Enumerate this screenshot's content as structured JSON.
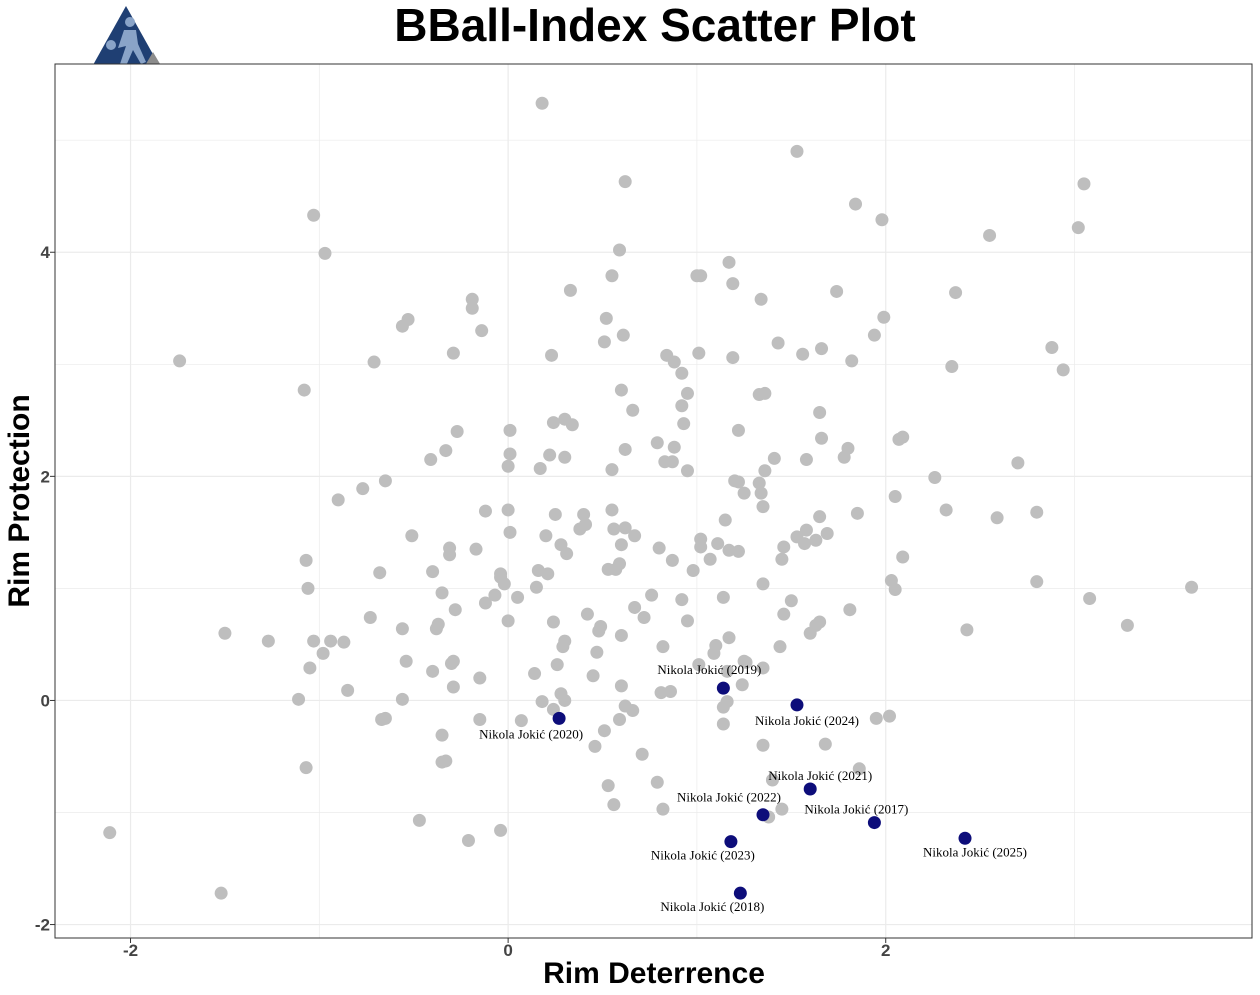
{
  "chart_data": {
    "type": "scatter",
    "title": "BBall-Index Scatter Plot",
    "xlabel": "Rim Deterrence",
    "ylabel": "Rim Protection",
    "xlim": [
      -2.4,
      3.94
    ],
    "ylim": [
      -2.12,
      5.68
    ],
    "x_ticks": [
      -2,
      0,
      2
    ],
    "y_ticks": [
      -2,
      0,
      2,
      4
    ],
    "x_tick_labels": [
      "-2",
      "0",
      "2"
    ],
    "y_tick_labels": [
      "-2",
      "0",
      "2",
      "4"
    ],
    "grid": true,
    "colors": {
      "background": "#ffffff",
      "others": "#bebebe",
      "highlight": "#0d0d7a",
      "grid": "#ebebeb",
      "logo_primary": "#1f3f73",
      "logo_secondary": "#8c8c8c"
    },
    "logo_icon": "basketball-player-triangle-logo",
    "series": [
      {
        "values": [
          [
            0.18,
            5.33
          ],
          [
            1.53,
            4.9
          ],
          [
            0.62,
            4.63
          ],
          [
            3.05,
            4.61
          ],
          [
            1.84,
            4.43
          ],
          [
            -1.03,
            4.33
          ],
          [
            1.98,
            4.29
          ],
          [
            3.02,
            4.22
          ],
          [
            2.55,
            4.15
          ],
          [
            0.59,
            4.02
          ],
          [
            -0.97,
            3.99
          ],
          [
            1.17,
            3.91
          ],
          [
            1.0,
            3.79
          ],
          [
            0.55,
            3.79
          ],
          [
            1.02,
            3.79
          ],
          [
            1.19,
            3.72
          ],
          [
            0.33,
            3.66
          ],
          [
            1.74,
            3.65
          ],
          [
            2.37,
            3.64
          ],
          [
            1.34,
            3.58
          ],
          [
            -0.19,
            3.58
          ],
          [
            -0.19,
            3.5
          ],
          [
            0.52,
            3.41
          ],
          [
            1.99,
            3.42
          ],
          [
            -0.53,
            3.4
          ],
          [
            -0.56,
            3.34
          ],
          [
            -0.14,
            3.3
          ],
          [
            0.61,
            3.26
          ],
          [
            1.94,
            3.26
          ],
          [
            1.43,
            3.19
          ],
          [
            0.51,
            3.2
          ],
          [
            2.88,
            3.15
          ],
          [
            1.66,
            3.14
          ],
          [
            -0.29,
            3.1
          ],
          [
            1.01,
            3.1
          ],
          [
            0.23,
            3.08
          ],
          [
            0.84,
            3.08
          ],
          [
            1.56,
            3.09
          ],
          [
            1.19,
            3.06
          ],
          [
            1.82,
            3.03
          ],
          [
            0.88,
            3.02
          ],
          [
            -1.74,
            3.03
          ],
          [
            -0.71,
            3.02
          ],
          [
            2.35,
            2.98
          ],
          [
            2.94,
            2.95
          ],
          [
            0.92,
            2.92
          ],
          [
            0.6,
            2.77
          ],
          [
            -1.08,
            2.77
          ],
          [
            0.95,
            2.74
          ],
          [
            1.33,
            2.73
          ],
          [
            1.36,
            2.74
          ],
          [
            0.92,
            2.63
          ],
          [
            0.66,
            2.59
          ],
          [
            1.65,
            2.57
          ],
          [
            0.3,
            2.51
          ],
          [
            0.24,
            2.48
          ],
          [
            0.34,
            2.46
          ],
          [
            0.93,
            2.47
          ],
          [
            1.22,
            2.41
          ],
          [
            0.01,
            2.41
          ],
          [
            -0.27,
            2.4
          ],
          [
            1.66,
            2.34
          ],
          [
            2.07,
            2.33
          ],
          [
            2.09,
            2.35
          ],
          [
            0.79,
            2.3
          ],
          [
            0.88,
            2.26
          ],
          [
            -0.33,
            2.23
          ],
          [
            1.8,
            2.25
          ],
          [
            0.62,
            2.24
          ],
          [
            0.22,
            2.19
          ],
          [
            0.01,
            2.2
          ],
          [
            0.3,
            2.17
          ],
          [
            1.41,
            2.16
          ],
          [
            1.58,
            2.15
          ],
          [
            1.78,
            2.17
          ],
          [
            -0.41,
            2.15
          ],
          [
            0.83,
            2.13
          ],
          [
            0.87,
            2.13
          ],
          [
            2.7,
            2.12
          ],
          [
            0.0,
            2.09
          ],
          [
            0.17,
            2.07
          ],
          [
            0.55,
            2.06
          ],
          [
            1.36,
            2.05
          ],
          [
            0.95,
            2.05
          ],
          [
            2.26,
            1.99
          ],
          [
            1.2,
            1.96
          ],
          [
            -0.65,
            1.96
          ],
          [
            1.22,
            1.95
          ],
          [
            1.33,
            1.94
          ],
          [
            -0.77,
            1.89
          ],
          [
            1.25,
            1.85
          ],
          [
            1.34,
            1.85
          ],
          [
            2.05,
            1.82
          ],
          [
            -0.9,
            1.79
          ],
          [
            1.35,
            1.73
          ],
          [
            2.32,
            1.7
          ],
          [
            0.55,
            1.7
          ],
          [
            -0.12,
            1.69
          ],
          [
            0.0,
            1.7
          ],
          [
            2.8,
            1.68
          ],
          [
            0.25,
            1.66
          ],
          [
            0.4,
            1.66
          ],
          [
            1.85,
            1.67
          ],
          [
            1.65,
            1.64
          ],
          [
            2.59,
            1.63
          ],
          [
            1.15,
            1.61
          ],
          [
            0.41,
            1.57
          ],
          [
            0.38,
            1.53
          ],
          [
            0.56,
            1.53
          ],
          [
            0.62,
            1.54
          ],
          [
            1.58,
            1.52
          ],
          [
            0.01,
            1.5
          ],
          [
            0.2,
            1.47
          ],
          [
            -0.51,
            1.47
          ],
          [
            0.67,
            1.47
          ],
          [
            1.53,
            1.46
          ],
          [
            1.69,
            1.49
          ],
          [
            1.63,
            1.43
          ],
          [
            1.57,
            1.4
          ],
          [
            0.28,
            1.39
          ],
          [
            1.02,
            1.44
          ],
          [
            0.6,
            1.39
          ],
          [
            1.11,
            1.4
          ],
          [
            -0.31,
            1.36
          ],
          [
            -0.17,
            1.35
          ],
          [
            0.8,
            1.36
          ],
          [
            1.22,
            1.33
          ],
          [
            1.17,
            1.34
          ],
          [
            1.46,
            1.37
          ],
          [
            1.02,
            1.37
          ],
          [
            0.31,
            1.31
          ],
          [
            -0.31,
            1.3
          ],
          [
            2.09,
            1.28
          ],
          [
            1.45,
            1.26
          ],
          [
            0.87,
            1.25
          ],
          [
            1.07,
            1.26
          ],
          [
            -1.07,
            1.25
          ],
          [
            0.53,
            1.17
          ],
          [
            0.57,
            1.17
          ],
          [
            0.59,
            1.22
          ],
          [
            0.98,
            1.16
          ],
          [
            0.16,
            1.16
          ],
          [
            0.21,
            1.13
          ],
          [
            -0.68,
            1.14
          ],
          [
            -0.4,
            1.15
          ],
          [
            -0.04,
            1.13
          ],
          [
            -0.04,
            1.1
          ],
          [
            1.35,
            1.04
          ],
          [
            2.03,
            1.07
          ],
          [
            2.8,
            1.06
          ],
          [
            -0.02,
            1.04
          ],
          [
            -1.06,
            1.0
          ],
          [
            3.62,
            1.01
          ],
          [
            0.15,
            1.01
          ],
          [
            2.05,
            0.99
          ],
          [
            -0.35,
            0.96
          ],
          [
            -0.07,
            0.94
          ],
          [
            0.05,
            0.92
          ],
          [
            1.14,
            0.92
          ],
          [
            3.08,
            0.91
          ],
          [
            0.76,
            0.94
          ],
          [
            0.92,
            0.9
          ],
          [
            1.5,
            0.89
          ],
          [
            -0.12,
            0.87
          ],
          [
            0.67,
            0.83
          ],
          [
            1.81,
            0.81
          ],
          [
            -0.28,
            0.81
          ],
          [
            0.42,
            0.77
          ],
          [
            1.46,
            0.77
          ],
          [
            0.72,
            0.74
          ],
          [
            -0.73,
            0.74
          ],
          [
            0.0,
            0.71
          ],
          [
            0.24,
            0.7
          ],
          [
            1.65,
            0.7
          ],
          [
            1.63,
            0.67
          ],
          [
            0.95,
            0.71
          ],
          [
            -0.37,
            0.68
          ],
          [
            -0.38,
            0.64
          ],
          [
            0.49,
            0.66
          ],
          [
            -0.56,
            0.64
          ],
          [
            3.28,
            0.67
          ],
          [
            2.43,
            0.63
          ],
          [
            0.48,
            0.62
          ],
          [
            -1.5,
            0.6
          ],
          [
            1.6,
            0.6
          ],
          [
            0.6,
            0.58
          ],
          [
            1.17,
            0.56
          ],
          [
            0.3,
            0.53
          ],
          [
            -1.27,
            0.53
          ],
          [
            -0.94,
            0.53
          ],
          [
            -1.03,
            0.53
          ],
          [
            -0.87,
            0.52
          ],
          [
            1.1,
            0.49
          ],
          [
            0.29,
            0.48
          ],
          [
            0.82,
            0.48
          ],
          [
            1.44,
            0.48
          ],
          [
            0.47,
            0.43
          ],
          [
            -0.98,
            0.42
          ],
          [
            1.09,
            0.42
          ],
          [
            1.25,
            0.35
          ],
          [
            -0.54,
            0.35
          ],
          [
            -0.29,
            0.35
          ],
          [
            1.26,
            0.34
          ],
          [
            -0.3,
            0.33
          ],
          [
            0.26,
            0.32
          ],
          [
            1.01,
            0.32
          ],
          [
            -1.05,
            0.29
          ],
          [
            1.35,
            0.29
          ],
          [
            -0.4,
            0.26
          ],
          [
            1.16,
            0.26
          ],
          [
            0.14,
            0.24
          ],
          [
            0.45,
            0.22
          ],
          [
            -0.15,
            0.2
          ],
          [
            1.24,
            0.14
          ],
          [
            0.6,
            0.13
          ],
          [
            -0.29,
            0.12
          ],
          [
            -0.85,
            0.09
          ],
          [
            0.86,
            0.08
          ],
          [
            0.81,
            0.07
          ],
          [
            0.28,
            0.06
          ],
          [
            0.3,
            0.0
          ],
          [
            0.18,
            -0.01
          ],
          [
            -1.11,
            0.01
          ],
          [
            -0.56,
            0.01
          ],
          [
            1.16,
            -0.01
          ],
          [
            0.62,
            -0.05
          ],
          [
            1.14,
            -0.06
          ],
          [
            0.24,
            -0.08
          ],
          [
            0.66,
            -0.09
          ],
          [
            1.95,
            -0.16
          ],
          [
            2.02,
            -0.14
          ],
          [
            -0.15,
            -0.17
          ],
          [
            0.07,
            -0.18
          ],
          [
            -0.65,
            -0.16
          ],
          [
            -0.67,
            -0.17
          ],
          [
            0.59,
            -0.17
          ],
          [
            1.14,
            -0.21
          ],
          [
            0.51,
            -0.27
          ],
          [
            -0.35,
            -0.31
          ],
          [
            1.35,
            -0.4
          ],
          [
            0.46,
            -0.41
          ],
          [
            1.68,
            -0.39
          ],
          [
            0.71,
            -0.48
          ],
          [
            -0.33,
            -0.54
          ],
          [
            -0.35,
            -0.55
          ],
          [
            -1.07,
            -0.6
          ],
          [
            1.86,
            -0.61
          ],
          [
            1.4,
            -0.71
          ],
          [
            0.79,
            -0.73
          ],
          [
            0.53,
            -0.76
          ],
          [
            1.45,
            -0.97
          ],
          [
            0.56,
            -0.93
          ],
          [
            0.82,
            -0.97
          ],
          [
            1.38,
            -1.04
          ],
          [
            -0.47,
            -1.07
          ],
          [
            -0.04,
            -1.16
          ],
          [
            -2.11,
            -1.18
          ],
          [
            -0.21,
            -1.25
          ],
          [
            -1.52,
            -1.72
          ]
        ]
      },
      {
        "values": [
          [
            1.14,
            0.11
          ],
          [
            0.27,
            -0.16
          ],
          [
            1.53,
            -0.04
          ],
          [
            1.6,
            -0.79
          ],
          [
            1.35,
            -1.02
          ],
          [
            1.94,
            -1.09
          ],
          [
            2.42,
            -1.23
          ],
          [
            1.18,
            -1.26
          ],
          [
            1.23,
            -1.72
          ]
        ],
        "labels": [
          "Nikola Jokić (2019)",
          "Nikola Jokić (2020)",
          "Nikola Jokić (2024)",
          "Nikola Jokić (2021)",
          "Nikola Jokić (2022)",
          "Nikola Jokić (2017)",
          "Nikola Jokić (2025)",
          "Nikola Jokić (2023)",
          "Nikola Jokić (2018)"
        ]
      }
    ]
  }
}
